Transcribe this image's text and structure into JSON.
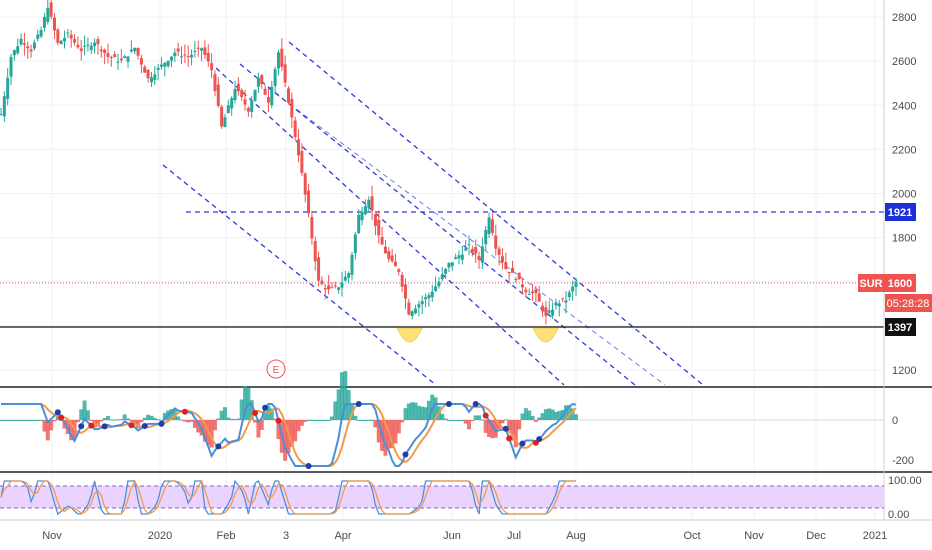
{
  "chart_data": {
    "type": "candlestick",
    "symbol": "SUR",
    "colors": {
      "up": "#26a69a",
      "down": "#ef5350",
      "channel": "#2e3bd6",
      "support": "#111111",
      "last_price_line": "#ef5350",
      "panel_border": "#222222",
      "macd_fast": "#4a90d9",
      "macd_slow": "#f29a4a",
      "stoch_band": "#e6ccff",
      "highlight": "#ffd84d"
    },
    "price_axis": {
      "ticks": [
        "2800",
        "2600",
        "2400",
        "2200",
        "2000",
        "1800",
        "1600",
        "1400",
        "1200"
      ],
      "ylim": [
        1120,
        2880
      ]
    },
    "x_axis": {
      "labels": [
        "Nov",
        "2020",
        "Feb",
        "3",
        "Apr",
        "Jun",
        "Jul",
        "Aug",
        "Oct",
        "Nov",
        "Dec",
        "2021"
      ]
    },
    "levels": {
      "resistance": "1921",
      "support": "1397",
      "last_price": "1600",
      "last_label": "SUR",
      "countdown": "05:28:28"
    },
    "price_series": [
      {
        "x": 0,
        "y": 2360
      },
      {
        "x": 3,
        "y": 2620
      },
      {
        "x": 6,
        "y": 2700
      },
      {
        "x": 9,
        "y": 2650
      },
      {
        "x": 12,
        "y": 2740
      },
      {
        "x": 14,
        "y": 2850
      },
      {
        "x": 17,
        "y": 2680
      },
      {
        "x": 20,
        "y": 2720
      },
      {
        "x": 24,
        "y": 2650
      },
      {
        "x": 28,
        "y": 2690
      },
      {
        "x": 32,
        "y": 2620
      },
      {
        "x": 36,
        "y": 2600
      },
      {
        "x": 40,
        "y": 2660
      },
      {
        "x": 44,
        "y": 2520
      },
      {
        "x": 48,
        "y": 2580
      },
      {
        "x": 52,
        "y": 2640
      },
      {
        "x": 56,
        "y": 2620
      },
      {
        "x": 60,
        "y": 2660
      },
      {
        "x": 63,
        "y": 2560
      },
      {
        "x": 66,
        "y": 2300
      },
      {
        "x": 70,
        "y": 2480
      },
      {
        "x": 74,
        "y": 2380
      },
      {
        "x": 77,
        "y": 2520
      },
      {
        "x": 80,
        "y": 2420
      },
      {
        "x": 83,
        "y": 2640
      },
      {
        "x": 86,
        "y": 2420
      },
      {
        "x": 89,
        "y": 2180
      },
      {
        "x": 92,
        "y": 1900
      },
      {
        "x": 95,
        "y": 1600
      },
      {
        "x": 98,
        "y": 1560
      },
      {
        "x": 101,
        "y": 1580
      },
      {
        "x": 104,
        "y": 1640
      },
      {
        "x": 107,
        "y": 1900
      },
      {
        "x": 110,
        "y": 1980
      },
      {
        "x": 113,
        "y": 1800
      },
      {
        "x": 116,
        "y": 1700
      },
      {
        "x": 119,
        "y": 1650
      },
      {
        "x": 122,
        "y": 1460
      },
      {
        "x": 125,
        "y": 1500
      },
      {
        "x": 128,
        "y": 1540
      },
      {
        "x": 131,
        "y": 1600
      },
      {
        "x": 134,
        "y": 1680
      },
      {
        "x": 137,
        "y": 1720
      },
      {
        "x": 140,
        "y": 1760
      },
      {
        "x": 143,
        "y": 1700
      },
      {
        "x": 146,
        "y": 1900
      },
      {
        "x": 148,
        "y": 1760
      },
      {
        "x": 151,
        "y": 1660
      },
      {
        "x": 154,
        "y": 1620
      },
      {
        "x": 157,
        "y": 1560
      },
      {
        "x": 160,
        "y": 1540
      },
      {
        "x": 163,
        "y": 1440
      },
      {
        "x": 166,
        "y": 1500
      },
      {
        "x": 169,
        "y": 1520
      },
      {
        "x": 172,
        "y": 1600
      }
    ],
    "macd_panel": {
      "ticks": [
        "0",
        "-200"
      ]
    },
    "stoch_panel": {
      "ticks": [
        "100.00",
        "0.00"
      ]
    }
  },
  "ui": {
    "event_marker": "E"
  }
}
